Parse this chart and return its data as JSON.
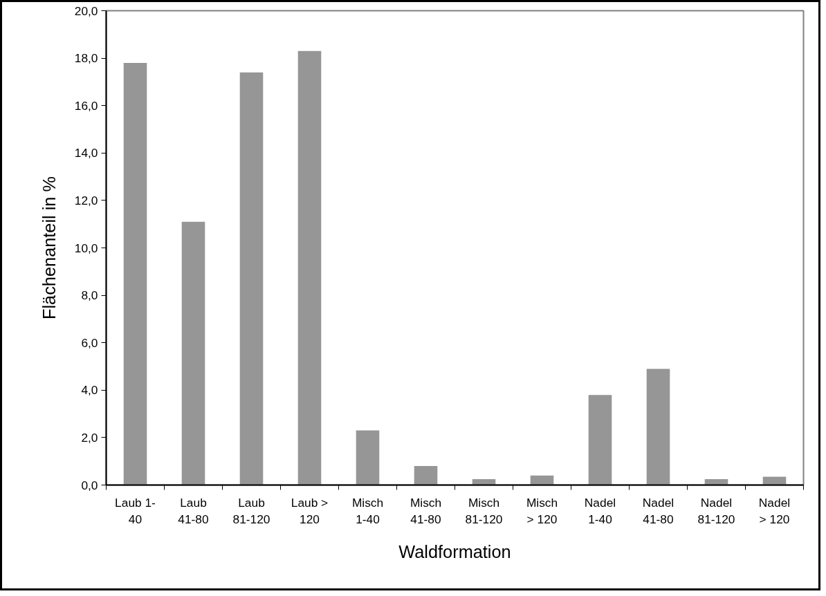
{
  "chart_data": {
    "type": "bar",
    "xlabel": "Waldformation",
    "ylabel": "Flächenanteil in %",
    "categories": [
      "Laub 1-\n40",
      "Laub\n41-80",
      "Laub\n81-120",
      "Laub >\n120",
      "Misch\n1-40",
      "Misch\n41-80",
      "Misch\n81-120",
      "Misch\n> 120",
      "Nadel\n1-40",
      "Nadel\n41-80",
      "Nadel\n81-120",
      "Nadel\n> 120"
    ],
    "values": [
      17.8,
      11.1,
      17.4,
      18.3,
      2.3,
      0.8,
      0.25,
      0.4,
      3.8,
      4.9,
      0.25,
      0.35
    ],
    "color": "#969696",
    "ylim": [
      0,
      20
    ],
    "yticks": [
      {
        "value": 0,
        "label": "0,0"
      },
      {
        "value": 2,
        "label": "2,0"
      },
      {
        "value": 4,
        "label": "4,0"
      },
      {
        "value": 6,
        "label": "6,0"
      },
      {
        "value": 8,
        "label": "8,0"
      },
      {
        "value": 10,
        "label": "10,0"
      },
      {
        "value": 12,
        "label": "12,0"
      },
      {
        "value": 14,
        "label": "14,0"
      },
      {
        "value": 16,
        "label": "16,0"
      },
      {
        "value": 18,
        "label": "18,0"
      },
      {
        "value": 20,
        "label": "20,0"
      }
    ],
    "grid": false
  }
}
